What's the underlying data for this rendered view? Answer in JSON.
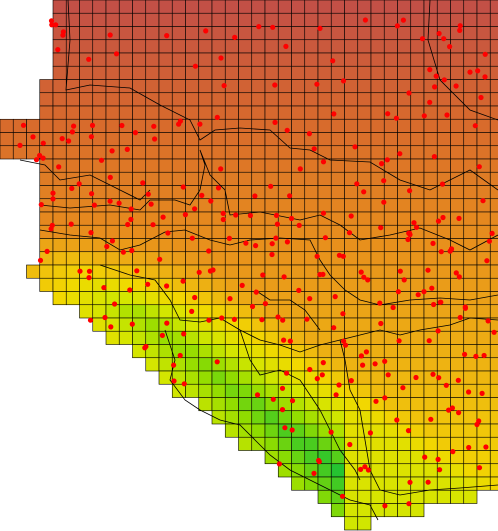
{
  "map": {
    "colors": [
      "#c24e48",
      "#d86a2c",
      "#e8901c",
      "#eeb412",
      "#f2d800",
      "#d4e600",
      "#8fdc00",
      "#22c232"
    ]
  }
}
